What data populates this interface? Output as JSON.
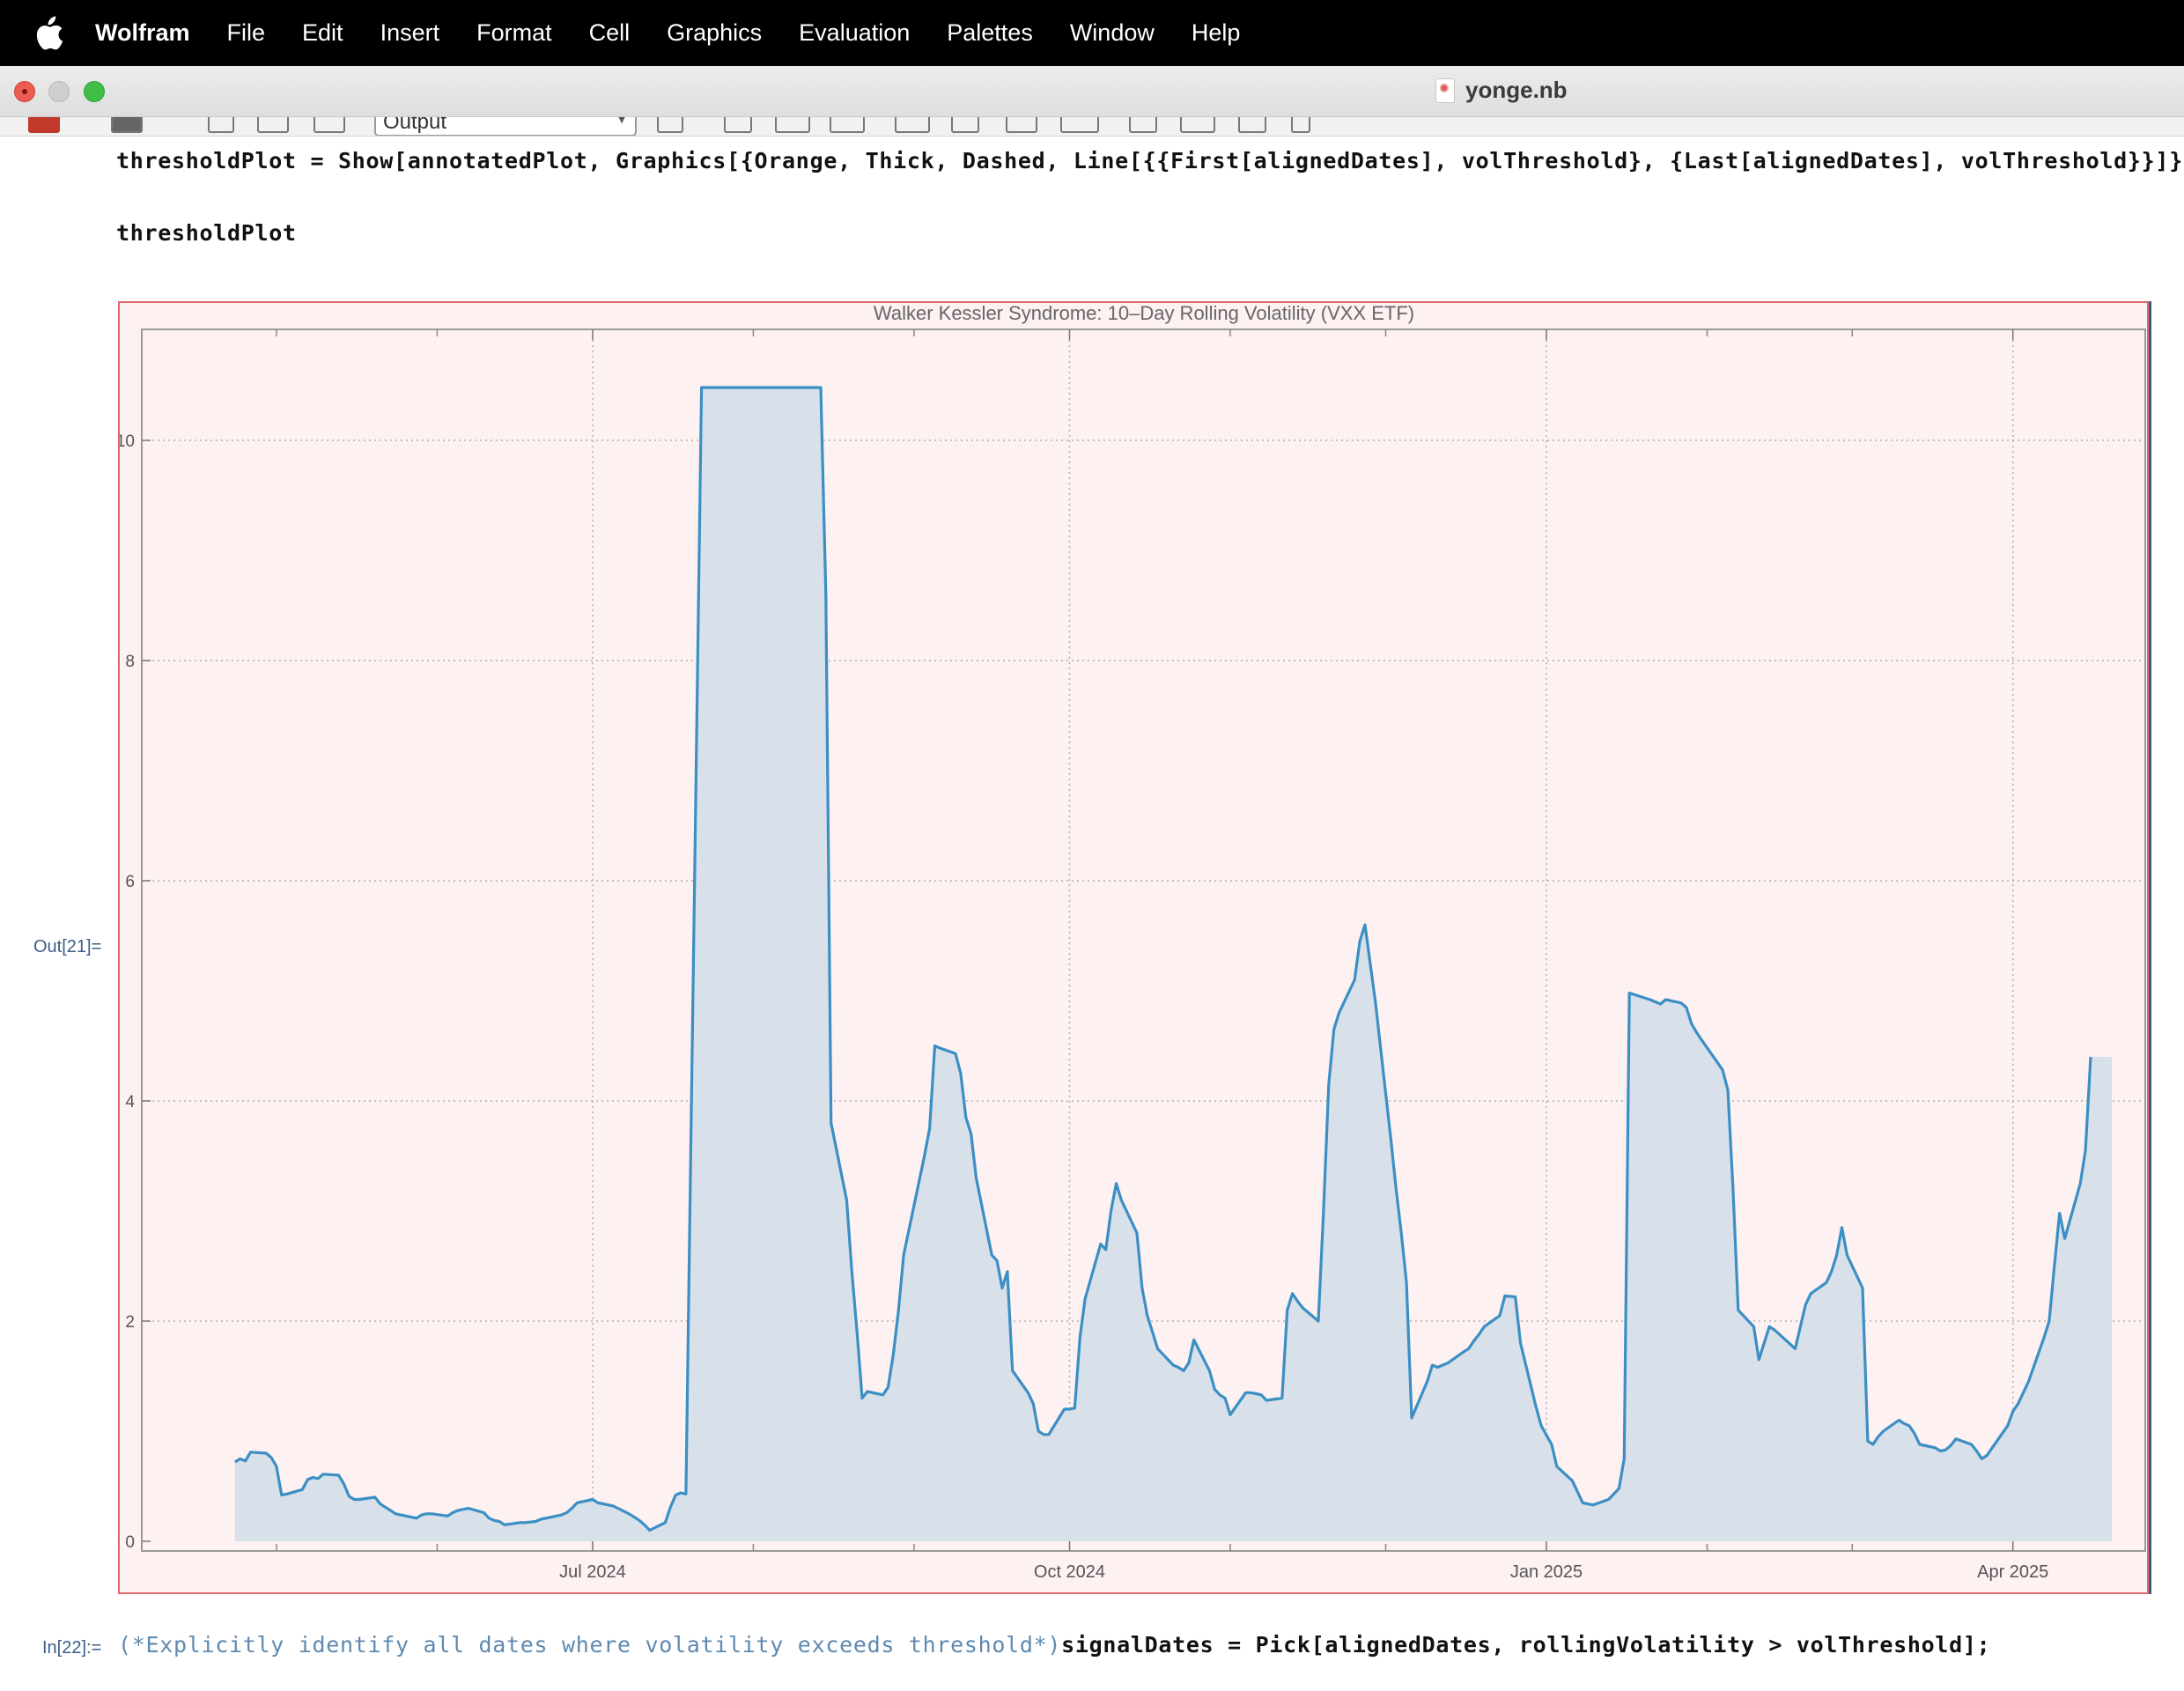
{
  "menubar": {
    "apple_icon": "apple-logo-icon",
    "app_name": "Wolfram",
    "items": [
      "File",
      "Edit",
      "Insert",
      "Format",
      "Cell",
      "Graphics",
      "Evaluation",
      "Palettes",
      "Window",
      "Help"
    ]
  },
  "window": {
    "title": "yonge.nb"
  },
  "toolbar": {
    "style_select": "Output"
  },
  "cells": {
    "line1": "thresholdPlot = Show[annotatedPlot, Graphics[{Orange, Thick, Dashed, Line[{{First[alignedDates], volThreshold}, {Last[alignedDates], volThreshold}}]}]];",
    "line2": "thresholdPlot",
    "out_label": "Out[21]=",
    "in_label": "In[22]:=",
    "next_comment": "(*Explicitly identify all dates where volatility exceeds threshold*)",
    "next_code": "signalDates = Pick[alignedDates, rollingVolatility > volThreshold];"
  },
  "colors": {
    "line": "#3b8fc4",
    "fill": "#d8e0ea",
    "plot_background": "#fdf1f2",
    "frame_border": "#e06a72"
  },
  "chart_data": {
    "type": "area",
    "title": "Walker Kessler Syndrome: 10–Day Rolling Volatility (VXX ETF)",
    "xlabel": "",
    "ylabel": "",
    "ylim": [
      0,
      10.5
    ],
    "xlim": [
      "2024-04-13",
      "2025-04-16"
    ],
    "y_ticks": [
      "0",
      "2",
      "4",
      "6",
      "8",
      "10"
    ],
    "x_tick_labels": [
      {
        "date": "2024-07-01",
        "label": "Jul 2024"
      },
      {
        "date": "2024-10-01",
        "label": "Oct 2024"
      },
      {
        "date": "2025-01-01",
        "label": "Jan 2025"
      },
      {
        "date": "2025-04-01",
        "label": "Apr 2025"
      }
    ],
    "x_minor_ticks": [
      "2024-05-01",
      "2024-06-01",
      "2024-08-01",
      "2024-09-01",
      "2024-11-01",
      "2024-12-01",
      "2025-02-01",
      "2025-03-01"
    ],
    "grid": true,
    "series": [
      {
        "points": [
          [
            "2024-04-23",
            0.72
          ],
          [
            "2024-04-24",
            0.75
          ],
          [
            "2024-04-25",
            0.73
          ],
          [
            "2024-04-26",
            0.81
          ],
          [
            "2024-04-29",
            0.8
          ],
          [
            "2024-04-30",
            0.76
          ],
          [
            "2024-05-01",
            0.68
          ],
          [
            "2024-05-02",
            0.42
          ],
          [
            "2024-05-03",
            0.43
          ],
          [
            "2024-05-06",
            0.47
          ],
          [
            "2024-05-07",
            0.56
          ],
          [
            "2024-05-08",
            0.58
          ],
          [
            "2024-05-09",
            0.57
          ],
          [
            "2024-05-10",
            0.61
          ],
          [
            "2024-05-13",
            0.6
          ],
          [
            "2024-05-14",
            0.52
          ],
          [
            "2024-05-15",
            0.41
          ],
          [
            "2024-05-16",
            0.38
          ],
          [
            "2024-05-17",
            0.38
          ],
          [
            "2024-05-20",
            0.4
          ],
          [
            "2024-05-21",
            0.34
          ],
          [
            "2024-05-22",
            0.31
          ],
          [
            "2024-05-23",
            0.28
          ],
          [
            "2024-05-24",
            0.25
          ],
          [
            "2024-05-28",
            0.21
          ],
          [
            "2024-05-29",
            0.24
          ],
          [
            "2024-05-30",
            0.25
          ],
          [
            "2024-05-31",
            0.25
          ],
          [
            "2024-06-03",
            0.23
          ],
          [
            "2024-06-04",
            0.26
          ],
          [
            "2024-06-05",
            0.28
          ],
          [
            "2024-06-06",
            0.29
          ],
          [
            "2024-06-07",
            0.3
          ],
          [
            "2024-06-10",
            0.26
          ],
          [
            "2024-06-11",
            0.21
          ],
          [
            "2024-06-12",
            0.19
          ],
          [
            "2024-06-13",
            0.18
          ],
          [
            "2024-06-14",
            0.15
          ],
          [
            "2024-06-17",
            0.17
          ],
          [
            "2024-06-18",
            0.17
          ],
          [
            "2024-06-20",
            0.18
          ],
          [
            "2024-06-21",
            0.2
          ],
          [
            "2024-06-24",
            0.23
          ],
          [
            "2024-06-25",
            0.24
          ],
          [
            "2024-06-26",
            0.26
          ],
          [
            "2024-06-27",
            0.3
          ],
          [
            "2024-06-28",
            0.35
          ],
          [
            "2024-07-01",
            0.38
          ],
          [
            "2024-07-02",
            0.35
          ],
          [
            "2024-07-03",
            0.34
          ],
          [
            "2024-07-05",
            0.32
          ],
          [
            "2024-07-08",
            0.25
          ],
          [
            "2024-07-09",
            0.22
          ],
          [
            "2024-07-10",
            0.19
          ],
          [
            "2024-07-11",
            0.15
          ],
          [
            "2024-07-12",
            0.1
          ],
          [
            "2024-07-15",
            0.17
          ],
          [
            "2024-07-16",
            0.31
          ],
          [
            "2024-07-17",
            0.42
          ],
          [
            "2024-07-18",
            0.44
          ],
          [
            "2024-07-19",
            0.43
          ],
          [
            "2024-07-22",
            10.48
          ],
          [
            "2024-08-14",
            10.48
          ],
          [
            "2024-08-15",
            8.6
          ],
          [
            "2024-08-16",
            3.8
          ],
          [
            "2024-08-19",
            3.1
          ],
          [
            "2024-08-20",
            2.45
          ],
          [
            "2024-08-21",
            1.9
          ],
          [
            "2024-08-22",
            1.3
          ],
          [
            "2024-08-23",
            1.36
          ],
          [
            "2024-08-26",
            1.33
          ],
          [
            "2024-08-27",
            1.4
          ],
          [
            "2024-08-28",
            1.7
          ],
          [
            "2024-08-29",
            2.1
          ],
          [
            "2024-08-30",
            2.6
          ],
          [
            "2024-09-03",
            3.5
          ],
          [
            "2024-09-04",
            3.75
          ],
          [
            "2024-09-05",
            4.5
          ],
          [
            "2024-09-06",
            4.48
          ],
          [
            "2024-09-09",
            4.43
          ],
          [
            "2024-09-10",
            4.25
          ],
          [
            "2024-09-11",
            3.85
          ],
          [
            "2024-09-12",
            3.7
          ],
          [
            "2024-09-13",
            3.3
          ],
          [
            "2024-09-16",
            2.6
          ],
          [
            "2024-09-17",
            2.55
          ],
          [
            "2024-09-18",
            2.3
          ],
          [
            "2024-09-19",
            2.45
          ],
          [
            "2024-09-20",
            1.55
          ],
          [
            "2024-09-23",
            1.35
          ],
          [
            "2024-09-24",
            1.25
          ],
          [
            "2024-09-25",
            1.0
          ],
          [
            "2024-09-26",
            0.97
          ],
          [
            "2024-09-27",
            0.97
          ],
          [
            "2024-09-30",
            1.2
          ],
          [
            "2024-10-01",
            1.2
          ],
          [
            "2024-10-02",
            1.21
          ],
          [
            "2024-10-03",
            1.85
          ],
          [
            "2024-10-04",
            2.2
          ],
          [
            "2024-10-07",
            2.7
          ],
          [
            "2024-10-08",
            2.65
          ],
          [
            "2024-10-09",
            3.0
          ],
          [
            "2024-10-10",
            3.25
          ],
          [
            "2024-10-11",
            3.1
          ],
          [
            "2024-10-14",
            2.8
          ],
          [
            "2024-10-15",
            2.3
          ],
          [
            "2024-10-16",
            2.05
          ],
          [
            "2024-10-17",
            1.9
          ],
          [
            "2024-10-18",
            1.75
          ],
          [
            "2024-10-21",
            1.6
          ],
          [
            "2024-10-22",
            1.58
          ],
          [
            "2024-10-23",
            1.55
          ],
          [
            "2024-10-24",
            1.62
          ],
          [
            "2024-10-25",
            1.83
          ],
          [
            "2024-10-28",
            1.55
          ],
          [
            "2024-10-29",
            1.38
          ],
          [
            "2024-10-30",
            1.33
          ],
          [
            "2024-10-31",
            1.3
          ],
          [
            "2024-11-01",
            1.15
          ],
          [
            "2024-11-04",
            1.35
          ],
          [
            "2024-11-05",
            1.35
          ],
          [
            "2024-11-06",
            1.34
          ],
          [
            "2024-11-07",
            1.33
          ],
          [
            "2024-11-08",
            1.28
          ],
          [
            "2024-11-11",
            1.3
          ],
          [
            "2024-11-12",
            2.1
          ],
          [
            "2024-11-13",
            2.25
          ],
          [
            "2024-11-14",
            2.18
          ],
          [
            "2024-11-15",
            2.12
          ],
          [
            "2024-11-18",
            2.0
          ],
          [
            "2024-11-19",
            3.0
          ],
          [
            "2024-11-20",
            4.15
          ],
          [
            "2024-11-21",
            4.65
          ],
          [
            "2024-11-22",
            4.8
          ],
          [
            "2024-11-25",
            5.1
          ],
          [
            "2024-11-26",
            5.45
          ],
          [
            "2024-11-27",
            5.6
          ],
          [
            "2024-11-29",
            4.9
          ],
          [
            "2024-12-02",
            3.65
          ],
          [
            "2024-12-03",
            3.2
          ],
          [
            "2024-12-04",
            2.8
          ],
          [
            "2024-12-05",
            2.35
          ],
          [
            "2024-12-06",
            1.12
          ],
          [
            "2024-12-09",
            1.45
          ],
          [
            "2024-12-10",
            1.6
          ],
          [
            "2024-12-11",
            1.58
          ],
          [
            "2024-12-12",
            1.6
          ],
          [
            "2024-12-13",
            1.62
          ],
          [
            "2024-12-16",
            1.72
          ],
          [
            "2024-12-17",
            1.75
          ],
          [
            "2024-12-18",
            1.82
          ],
          [
            "2024-12-19",
            1.88
          ],
          [
            "2024-12-20",
            1.95
          ],
          [
            "2024-12-23",
            2.05
          ],
          [
            "2024-12-24",
            2.23
          ],
          [
            "2024-12-26",
            2.22
          ],
          [
            "2024-12-27",
            1.8
          ],
          [
            "2024-12-30",
            1.22
          ],
          [
            "2024-12-31",
            1.05
          ],
          [
            "2025-01-02",
            0.88
          ],
          [
            "2025-01-03",
            0.68
          ],
          [
            "2025-01-06",
            0.55
          ],
          [
            "2025-01-07",
            0.45
          ],
          [
            "2025-01-08",
            0.35
          ],
          [
            "2025-01-10",
            0.33
          ],
          [
            "2025-01-13",
            0.38
          ],
          [
            "2025-01-14",
            0.43
          ],
          [
            "2025-01-15",
            0.48
          ],
          [
            "2025-01-16",
            0.75
          ],
          [
            "2025-01-17",
            4.98
          ],
          [
            "2025-01-21",
            4.92
          ],
          [
            "2025-01-22",
            4.9
          ],
          [
            "2025-01-23",
            4.88
          ],
          [
            "2025-01-24",
            4.92
          ],
          [
            "2025-01-27",
            4.89
          ],
          [
            "2025-01-28",
            4.85
          ],
          [
            "2025-01-29",
            4.7
          ],
          [
            "2025-01-30",
            4.62
          ],
          [
            "2025-01-31",
            4.55
          ],
          [
            "2025-02-03",
            4.35
          ],
          [
            "2025-02-04",
            4.28
          ],
          [
            "2025-02-05",
            4.1
          ],
          [
            "2025-02-06",
            3.2
          ],
          [
            "2025-02-07",
            2.1
          ],
          [
            "2025-02-10",
            1.95
          ],
          [
            "2025-02-11",
            1.65
          ],
          [
            "2025-02-12",
            1.8
          ],
          [
            "2025-02-13",
            1.95
          ],
          [
            "2025-02-14",
            1.92
          ],
          [
            "2025-02-18",
            1.75
          ],
          [
            "2025-02-19",
            1.95
          ],
          [
            "2025-02-20",
            2.15
          ],
          [
            "2025-02-21",
            2.25
          ],
          [
            "2025-02-24",
            2.35
          ],
          [
            "2025-02-25",
            2.45
          ],
          [
            "2025-02-26",
            2.6
          ],
          [
            "2025-02-27",
            2.85
          ],
          [
            "2025-02-28",
            2.6
          ],
          [
            "2025-03-03",
            2.3
          ],
          [
            "2025-03-04",
            0.91
          ],
          [
            "2025-03-05",
            0.88
          ],
          [
            "2025-03-06",
            0.95
          ],
          [
            "2025-03-07",
            1.0
          ],
          [
            "2025-03-10",
            1.1
          ],
          [
            "2025-03-11",
            1.07
          ],
          [
            "2025-03-12",
            1.05
          ],
          [
            "2025-03-13",
            0.98
          ],
          [
            "2025-03-14",
            0.88
          ],
          [
            "2025-03-17",
            0.85
          ],
          [
            "2025-03-18",
            0.82
          ],
          [
            "2025-03-19",
            0.83
          ],
          [
            "2025-03-20",
            0.87
          ],
          [
            "2025-03-21",
            0.93
          ],
          [
            "2025-03-24",
            0.88
          ],
          [
            "2025-03-25",
            0.82
          ],
          [
            "2025-03-26",
            0.75
          ],
          [
            "2025-03-27",
            0.78
          ],
          [
            "2025-03-28",
            0.85
          ],
          [
            "2025-03-31",
            1.05
          ],
          [
            "2025-04-01",
            1.18
          ],
          [
            "2025-04-02",
            1.25
          ],
          [
            "2025-04-03",
            1.35
          ],
          [
            "2025-04-04",
            1.45
          ],
          [
            "2025-04-07",
            1.85
          ],
          [
            "2025-04-08",
            2.0
          ],
          [
            "2025-04-09",
            2.5
          ],
          [
            "2025-04-10",
            2.98
          ],
          [
            "2025-04-11",
            2.75
          ],
          [
            "2025-04-14",
            3.25
          ],
          [
            "2025-04-15",
            3.55
          ],
          [
            "2025-04-16",
            4.4
          ]
        ]
      }
    ]
  }
}
